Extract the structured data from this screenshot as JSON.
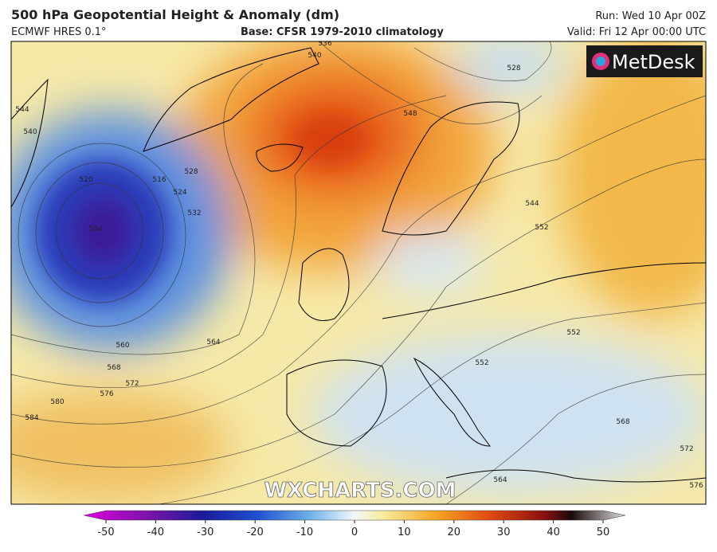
{
  "header": {
    "title": "500 hPa Geopotential Height & Anomaly (dm)",
    "model": "ECMWF HRES 0.1°",
    "base": "Base: CFSR 1979-2010 climatology",
    "run": "Run: Wed 10 Apr 00Z",
    "valid": "Valid: Fri 12 Apr 00:00 UTC"
  },
  "logo": "MetDesk",
  "watermark": "WXCHARTS.COM",
  "contour_labels": [
    "544",
    "540",
    "520",
    "516",
    "524",
    "528",
    "532",
    "504",
    "560",
    "564",
    "568",
    "572",
    "576",
    "580",
    "584",
    "536",
    "540",
    "548",
    "528",
    "544",
    "552",
    "552",
    "552",
    "568",
    "572",
    "564",
    "576"
  ],
  "colorbar": {
    "lim": [
      -50,
      50
    ],
    "ticks": [
      -50,
      -40,
      -30,
      -20,
      -10,
      0,
      10,
      20,
      30,
      40,
      50
    ]
  }
}
